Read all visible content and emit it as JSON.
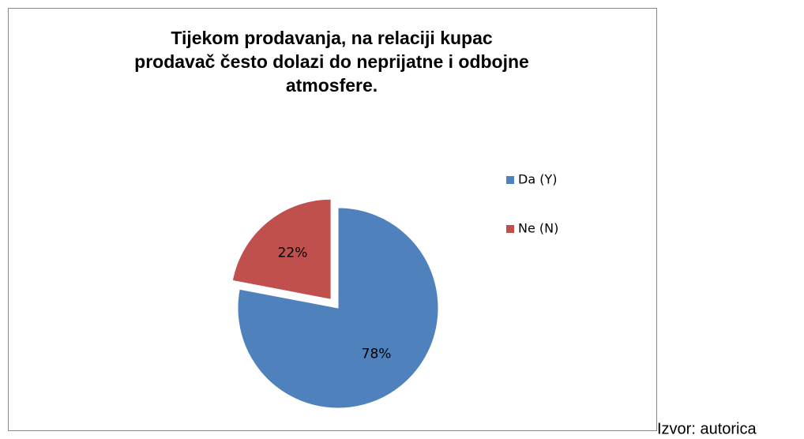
{
  "chart_data": {
    "type": "pie",
    "title": [
      "Tijekom prodavanja, na relaciji kupac",
      "prodavač često dolazi do neprijatne i odbojne",
      "atmosfere."
    ],
    "categories": [
      "Da (Y)",
      "Ne (N)"
    ],
    "values": [
      78,
      22
    ],
    "value_labels": [
      "78%",
      "22%"
    ],
    "colors": [
      "#4f81bd",
      "#c0504d"
    ],
    "exploded": [
      false,
      true
    ],
    "legend": "right"
  },
  "source": "Izvor: autorica"
}
